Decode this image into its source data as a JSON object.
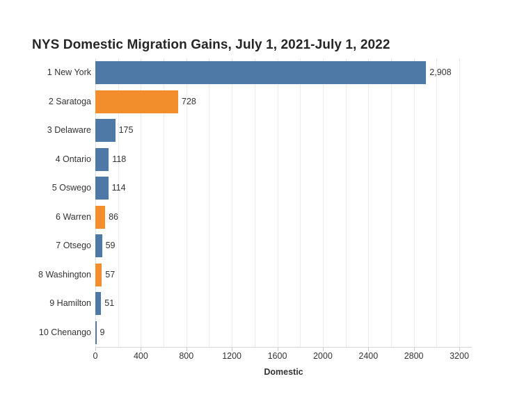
{
  "chart_data": {
    "type": "bar",
    "orientation": "horizontal",
    "title": "NYS Domestic Migration Gains, July 1, 2021-July 1, 2022",
    "xlabel": "Domestic",
    "ylabel": "",
    "categories": [
      "1 New York",
      "2 Saratoga",
      "3 Delaware",
      "4 Ontario",
      "5 Oswego",
      "6 Warren",
      "7 Otsego",
      "8 Washington",
      "9 Hamilton",
      "10 Chenango"
    ],
    "values": [
      2908,
      728,
      175,
      118,
      114,
      86,
      59,
      57,
      51,
      9
    ],
    "value_labels": [
      "2,908",
      "728",
      "175",
      "118",
      "114",
      "86",
      "59",
      "57",
      "51",
      "9"
    ],
    "bar_colors": [
      "#4e79a7",
      "#f28e2b",
      "#4e79a7",
      "#4e79a7",
      "#4e79a7",
      "#f28e2b",
      "#4e79a7",
      "#f28e2b",
      "#4e79a7",
      "#4e79a7"
    ],
    "x_ticks": [
      0,
      400,
      800,
      1200,
      1600,
      2000,
      2400,
      2800,
      3200
    ],
    "xlim": [
      0,
      3310
    ],
    "grid_interval": 200,
    "grid": "vertical-only",
    "legend": "none",
    "colors": {
      "bar_blue": "#4e79a7",
      "bar_orange": "#f28e2b",
      "gridline": "#ececec",
      "zero_line": "#dbe3ec",
      "axis_line": "#d4d4d4",
      "tick_mark": "#c9c9c9",
      "label_text": "#333333",
      "title_text": "#262626"
    }
  }
}
